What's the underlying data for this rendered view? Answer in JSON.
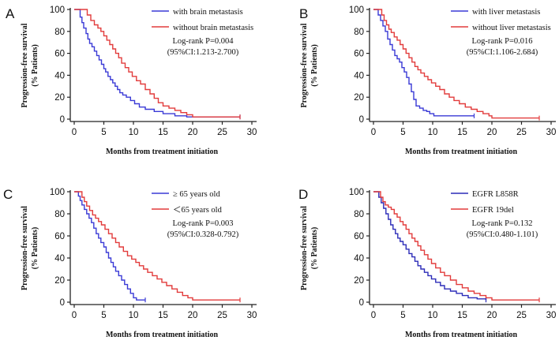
{
  "chart_data": [
    {
      "type": "line",
      "panel_label": "A",
      "ylabel_line1": "Progression-free survival",
      "ylabel_line2": "(% Patients)",
      "xlabel": "Months from treatment initiation",
      "xlim": [
        0,
        30
      ],
      "ylim": [
        0,
        100
      ],
      "xticks": [
        "0",
        "5",
        "10",
        "15",
        "20",
        "25",
        "30"
      ],
      "yticks": [
        "0",
        "20",
        "40",
        "60",
        "80",
        "100"
      ],
      "stat_line1": "Log-rank P=0.004",
      "stat_line2": "(95%CI:1.213-2.700)",
      "series": [
        {
          "name": "with brain metastasis",
          "color": "#3a3ad6",
          "points": [
            [
              0,
              100
            ],
            [
              0.8,
              100
            ],
            [
              1.0,
              93
            ],
            [
              1.3,
              88
            ],
            [
              1.6,
              83
            ],
            [
              2.0,
              78
            ],
            [
              2.3,
              73
            ],
            [
              2.6,
              69
            ],
            [
              3.0,
              66
            ],
            [
              3.4,
              62
            ],
            [
              3.8,
              58
            ],
            [
              4.2,
              54
            ],
            [
              4.6,
              50
            ],
            [
              5.0,
              46
            ],
            [
              5.3,
              43
            ],
            [
              5.7,
              39
            ],
            [
              6.1,
              36
            ],
            [
              6.5,
              33
            ],
            [
              6.9,
              30
            ],
            [
              7.3,
              27
            ],
            [
              7.7,
              24
            ],
            [
              8.2,
              22
            ],
            [
              8.8,
              20
            ],
            [
              9.5,
              17
            ],
            [
              10.2,
              14
            ],
            [
              11.0,
              11
            ],
            [
              12.0,
              9
            ],
            [
              13.5,
              7
            ],
            [
              15.0,
              5
            ],
            [
              17.0,
              3
            ],
            [
              19.0,
              2
            ],
            [
              28.0,
              2
            ]
          ]
        },
        {
          "name": "without brain metastasis",
          "color": "#e23b3b",
          "points": [
            [
              0,
              100
            ],
            [
              1.8,
              100
            ],
            [
              2.2,
              95
            ],
            [
              2.8,
              90
            ],
            [
              3.4,
              86
            ],
            [
              4.0,
              83
            ],
            [
              4.5,
              80
            ],
            [
              5.0,
              76
            ],
            [
              5.5,
              72
            ],
            [
              6.0,
              68
            ],
            [
              6.5,
              64
            ],
            [
              7.0,
              60
            ],
            [
              7.5,
              56
            ],
            [
              8.0,
              51
            ],
            [
              8.6,
              47
            ],
            [
              9.2,
              43
            ],
            [
              9.8,
              39
            ],
            [
              10.5,
              35
            ],
            [
              11.2,
              32
            ],
            [
              12.0,
              27
            ],
            [
              12.8,
              23
            ],
            [
              13.5,
              19
            ],
            [
              14.2,
              15
            ],
            [
              15.0,
              12
            ],
            [
              16.0,
              10
            ],
            [
              17.0,
              8
            ],
            [
              18.0,
              6
            ],
            [
              19.0,
              4
            ],
            [
              20.0,
              2
            ],
            [
              28.0,
              2
            ]
          ]
        }
      ]
    },
    {
      "type": "line",
      "panel_label": "B",
      "ylabel_line1": "Progression-free survival",
      "ylabel_line2": "(% Patients)",
      "xlabel": "Months from treatment initiation",
      "xlim": [
        0,
        30
      ],
      "ylim": [
        0,
        100
      ],
      "xticks": [
        "0",
        "5",
        "10",
        "15",
        "20",
        "25",
        "30"
      ],
      "yticks": [
        "0",
        "20",
        "40",
        "60",
        "80",
        "100"
      ],
      "stat_line1": "Log-rank P=0.016",
      "stat_line2": "(95%CI:1.106-2.684)",
      "series": [
        {
          "name": "with liver metastasis",
          "color": "#3a3ad6",
          "points": [
            [
              0,
              100
            ],
            [
              0.5,
              100
            ],
            [
              0.8,
              95
            ],
            [
              1.2,
              90
            ],
            [
              1.6,
              85
            ],
            [
              2.0,
              80
            ],
            [
              2.4,
              73
            ],
            [
              2.8,
              68
            ],
            [
              3.2,
              63
            ],
            [
              3.6,
              58
            ],
            [
              4.0,
              55
            ],
            [
              4.4,
              52
            ],
            [
              4.8,
              47
            ],
            [
              5.2,
              43
            ],
            [
              5.6,
              38
            ],
            [
              6.0,
              32
            ],
            [
              6.4,
              25
            ],
            [
              6.8,
              18
            ],
            [
              7.2,
              12
            ],
            [
              7.8,
              10
            ],
            [
              8.4,
              8
            ],
            [
              9.0,
              7
            ],
            [
              9.5,
              5
            ],
            [
              10.2,
              3
            ],
            [
              17.0,
              3
            ]
          ]
        },
        {
          "name": "without liver metastasis",
          "color": "#e23b3b",
          "points": [
            [
              0,
              100
            ],
            [
              1.0,
              100
            ],
            [
              1.4,
              95
            ],
            [
              1.8,
              90
            ],
            [
              2.2,
              86
            ],
            [
              2.6,
              82
            ],
            [
              3.0,
              79
            ],
            [
              3.5,
              75
            ],
            [
              4.0,
              72
            ],
            [
              4.5,
              68
            ],
            [
              5.0,
              64
            ],
            [
              5.5,
              60
            ],
            [
              6.0,
              56
            ],
            [
              6.5,
              52
            ],
            [
              7.0,
              48
            ],
            [
              7.5,
              45
            ],
            [
              8.0,
              42
            ],
            [
              8.6,
              39
            ],
            [
              9.2,
              36
            ],
            [
              9.8,
              33
            ],
            [
              10.5,
              30
            ],
            [
              11.2,
              27
            ],
            [
              12.0,
              23
            ],
            [
              12.8,
              20
            ],
            [
              13.6,
              17
            ],
            [
              14.5,
              14
            ],
            [
              15.5,
              11
            ],
            [
              16.5,
              9
            ],
            [
              17.5,
              7
            ],
            [
              18.5,
              5
            ],
            [
              19.5,
              3
            ],
            [
              20.0,
              1
            ],
            [
              28.0,
              1
            ]
          ]
        }
      ]
    },
    {
      "type": "line",
      "panel_label": "C",
      "ylabel_line1": "Progression-free survival",
      "ylabel_line2": "(% Patients)",
      "xlabel": "Months from treatment initiation",
      "xlim": [
        0,
        30
      ],
      "ylim": [
        0,
        100
      ],
      "xticks": [
        "0",
        "5",
        "10",
        "15",
        "20",
        "25",
        "30"
      ],
      "yticks": [
        "0",
        "20",
        "40",
        "60",
        "80",
        "100"
      ],
      "stat_line1": "Log-rank P=0.003",
      "stat_line2": "(95%CI:0.328-0.792)",
      "series": [
        {
          "name": "≥ 65 years old",
          "color": "#3a3ad6",
          "points": [
            [
              0,
              100
            ],
            [
              0.4,
              100
            ],
            [
              0.7,
              96
            ],
            [
              1.0,
              92
            ],
            [
              1.3,
              88
            ],
            [
              1.7,
              84
            ],
            [
              2.1,
              80
            ],
            [
              2.5,
              76
            ],
            [
              2.9,
              72
            ],
            [
              3.3,
              67
            ],
            [
              3.7,
              62
            ],
            [
              4.1,
              58
            ],
            [
              4.5,
              54
            ],
            [
              5.0,
              50
            ],
            [
              5.4,
              45
            ],
            [
              5.8,
              40
            ],
            [
              6.2,
              36
            ],
            [
              6.6,
              32
            ],
            [
              7.0,
              28
            ],
            [
              7.5,
              24
            ],
            [
              8.0,
              20
            ],
            [
              8.5,
              16
            ],
            [
              9.0,
              12
            ],
            [
              9.5,
              8
            ],
            [
              10.0,
              4
            ],
            [
              10.5,
              2
            ],
            [
              12.0,
              2
            ]
          ]
        },
        {
          "name": "＜65 years old",
          "color": "#e23b3b",
          "points": [
            [
              0,
              100
            ],
            [
              1.0,
              100
            ],
            [
              1.3,
              95
            ],
            [
              1.7,
              91
            ],
            [
              2.1,
              87
            ],
            [
              2.6,
              83
            ],
            [
              3.1,
              79
            ],
            [
              3.6,
              76
            ],
            [
              4.1,
              73
            ],
            [
              4.6,
              70
            ],
            [
              5.2,
              66
            ],
            [
              5.8,
              62
            ],
            [
              6.4,
              58
            ],
            [
              7.0,
              54
            ],
            [
              7.6,
              50
            ],
            [
              8.3,
              46
            ],
            [
              9.0,
              42
            ],
            [
              9.7,
              39
            ],
            [
              10.4,
              36
            ],
            [
              11.0,
              33
            ],
            [
              11.7,
              30
            ],
            [
              12.4,
              27
            ],
            [
              13.2,
              24
            ],
            [
              14.0,
              21
            ],
            [
              14.8,
              18
            ],
            [
              15.6,
              15
            ],
            [
              16.5,
              12
            ],
            [
              17.4,
              9
            ],
            [
              18.3,
              6
            ],
            [
              19.2,
              4
            ],
            [
              20.0,
              2
            ],
            [
              28.0,
              2
            ]
          ]
        }
      ]
    },
    {
      "type": "line",
      "panel_label": "D",
      "ylabel_line1": "Progression-free survival",
      "ylabel_line2": "(% Patients)",
      "xlabel": "Months from treatment initiation",
      "xlim": [
        0,
        30
      ],
      "ylim": [
        0,
        100
      ],
      "xticks": [
        "0",
        "5",
        "10",
        "15",
        "20",
        "25",
        "30"
      ],
      "yticks": [
        "0",
        "20",
        "40",
        "60",
        "80",
        "100"
      ],
      "stat_line1": "Log-rank P=0.132",
      "stat_line2": "(95%CI:0.480-1.101)",
      "series": [
        {
          "name": "EGFR L858R",
          "color": "#2c2cb8",
          "points": [
            [
              0,
              100
            ],
            [
              0.5,
              100
            ],
            [
              0.9,
              95
            ],
            [
              1.3,
              90
            ],
            [
              1.7,
              85
            ],
            [
              2.1,
              80
            ],
            [
              2.5,
              75
            ],
            [
              2.9,
              70
            ],
            [
              3.3,
              66
            ],
            [
              3.7,
              62
            ],
            [
              4.1,
              58
            ],
            [
              4.5,
              55
            ],
            [
              5.0,
              52
            ],
            [
              5.5,
              48
            ],
            [
              6.0,
              44
            ],
            [
              6.5,
              41
            ],
            [
              7.0,
              37
            ],
            [
              7.5,
              33
            ],
            [
              8.0,
              30
            ],
            [
              8.6,
              27
            ],
            [
              9.2,
              24
            ],
            [
              9.8,
              21
            ],
            [
              10.5,
              18
            ],
            [
              11.3,
              15
            ],
            [
              12.0,
              12
            ],
            [
              13.0,
              10
            ],
            [
              14.0,
              8
            ],
            [
              15.0,
              6
            ],
            [
              16.0,
              4
            ],
            [
              17.5,
              3
            ],
            [
              19.0,
              2
            ]
          ]
        },
        {
          "name": "EGFR 19del",
          "color": "#e23b3b",
          "points": [
            [
              0,
              100
            ],
            [
              0.8,
              100
            ],
            [
              1.2,
              95
            ],
            [
              1.6,
              91
            ],
            [
              2.0,
              88
            ],
            [
              2.5,
              86
            ],
            [
              3.0,
              84
            ],
            [
              3.5,
              80
            ],
            [
              4.0,
              77
            ],
            [
              4.5,
              73
            ],
            [
              5.0,
              70
            ],
            [
              5.5,
              66
            ],
            [
              6.0,
              62
            ],
            [
              6.5,
              58
            ],
            [
              7.0,
              55
            ],
            [
              7.5,
              51
            ],
            [
              8.0,
              47
            ],
            [
              8.6,
              43
            ],
            [
              9.2,
              39
            ],
            [
              9.8,
              35
            ],
            [
              10.5,
              31
            ],
            [
              11.3,
              27
            ],
            [
              12.0,
              24
            ],
            [
              13.0,
              20
            ],
            [
              14.0,
              16
            ],
            [
              15.0,
              13
            ],
            [
              16.0,
              10
            ],
            [
              17.0,
              8
            ],
            [
              18.0,
              6
            ],
            [
              19.0,
              4
            ],
            [
              20.0,
              2
            ],
            [
              28.0,
              2
            ]
          ]
        }
      ]
    }
  ]
}
